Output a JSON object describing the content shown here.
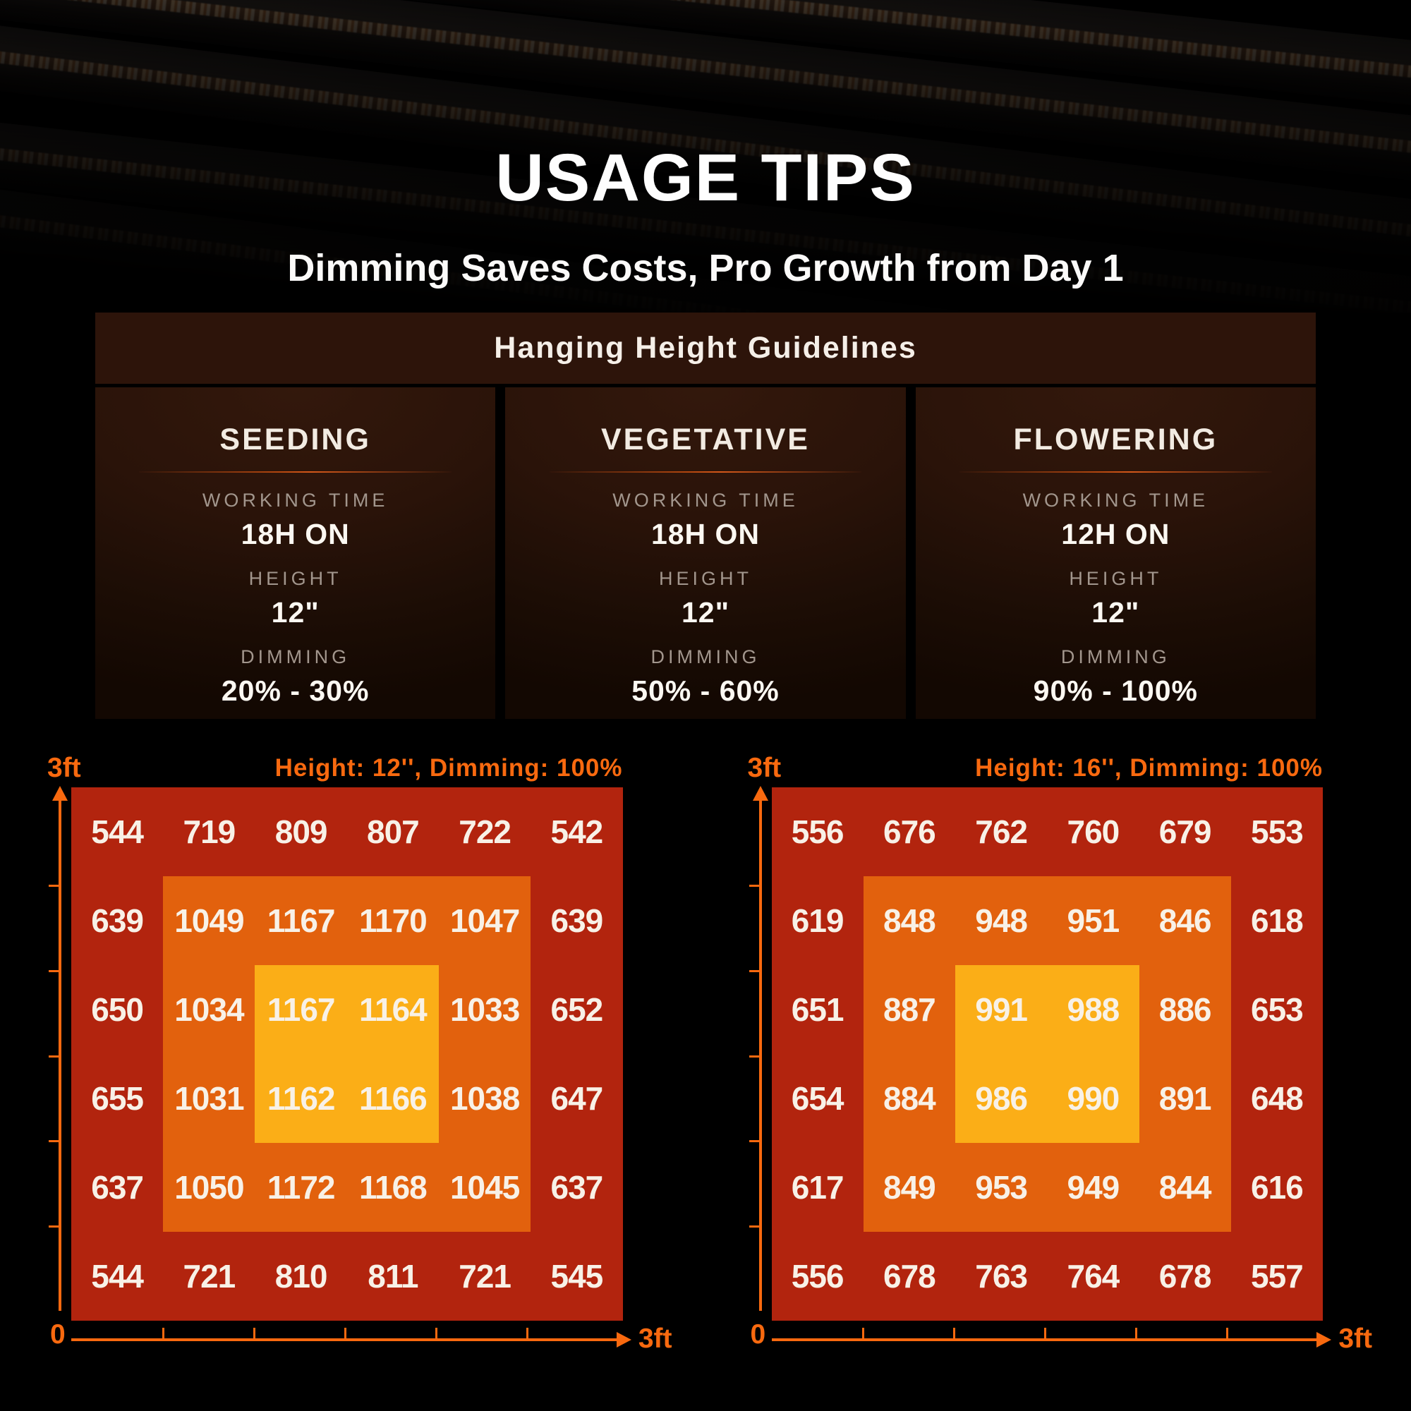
{
  "page": {
    "title": "USAGE TIPS",
    "subtitle": "Dimming Saves Costs, Pro Growth from Day 1"
  },
  "guidelines": {
    "header": "Hanging Height Guidelines",
    "stages": [
      {
        "name": "SEEDING",
        "working_time_label": "WORKING TIME",
        "working_time": "18H ON",
        "height_label": "HEIGHT",
        "height": "12\"",
        "dimming_label": "DIMMING",
        "dimming": "20% - 30%"
      },
      {
        "name": "VEGETATIVE",
        "working_time_label": "WORKING TIME",
        "working_time": "18H ON",
        "height_label": "HEIGHT",
        "height": "12\"",
        "dimming_label": "DIMMING",
        "dimming": "50% - 60%"
      },
      {
        "name": "FLOWERING",
        "working_time_label": "WORKING TIME",
        "working_time": "12H ON",
        "height_label": "HEIGHT",
        "height": "12\"",
        "dimming_label": "DIMMING",
        "dimming": "90% - 100%"
      }
    ]
  },
  "chart_data": [
    {
      "type": "heatmap",
      "title": "Height: 12'', Dimming: 100%",
      "grid_size": "6x6",
      "x_axis": {
        "origin_label": "0",
        "max_label": "3ft"
      },
      "y_axis": {
        "max_label": "3ft"
      },
      "values": [
        [
          544,
          719,
          809,
          807,
          722,
          542
        ],
        [
          639,
          1049,
          1167,
          1170,
          1047,
          639
        ],
        [
          650,
          1034,
          1167,
          1164,
          1033,
          652
        ],
        [
          655,
          1031,
          1162,
          1166,
          1038,
          647
        ],
        [
          637,
          1050,
          1172,
          1168,
          1045,
          637
        ],
        [
          544,
          721,
          810,
          811,
          721,
          545
        ]
      ],
      "zone_colors": {
        "outer": "#b2240e",
        "middle": "#e2610d",
        "center": "#fbae17"
      }
    },
    {
      "type": "heatmap",
      "title": "Height: 16'', Dimming: 100%",
      "grid_size": "6x6",
      "x_axis": {
        "origin_label": "0",
        "max_label": "3ft"
      },
      "y_axis": {
        "max_label": "3ft"
      },
      "values": [
        [
          556,
          676,
          762,
          760,
          679,
          553
        ],
        [
          619,
          848,
          948,
          951,
          846,
          618
        ],
        [
          651,
          887,
          991,
          988,
          886,
          653
        ],
        [
          654,
          884,
          986,
          990,
          891,
          648
        ],
        [
          617,
          849,
          953,
          949,
          844,
          616
        ],
        [
          556,
          678,
          763,
          764,
          678,
          557
        ]
      ],
      "zone_colors": {
        "outer": "#b2240e",
        "middle": "#e2610d",
        "center": "#fbae17"
      }
    }
  ],
  "colors": {
    "accent_orange": "#f8690f",
    "panel_brown": "#2d140a",
    "muted_label": "#a2968d",
    "value_text": "#f8f1e7"
  }
}
